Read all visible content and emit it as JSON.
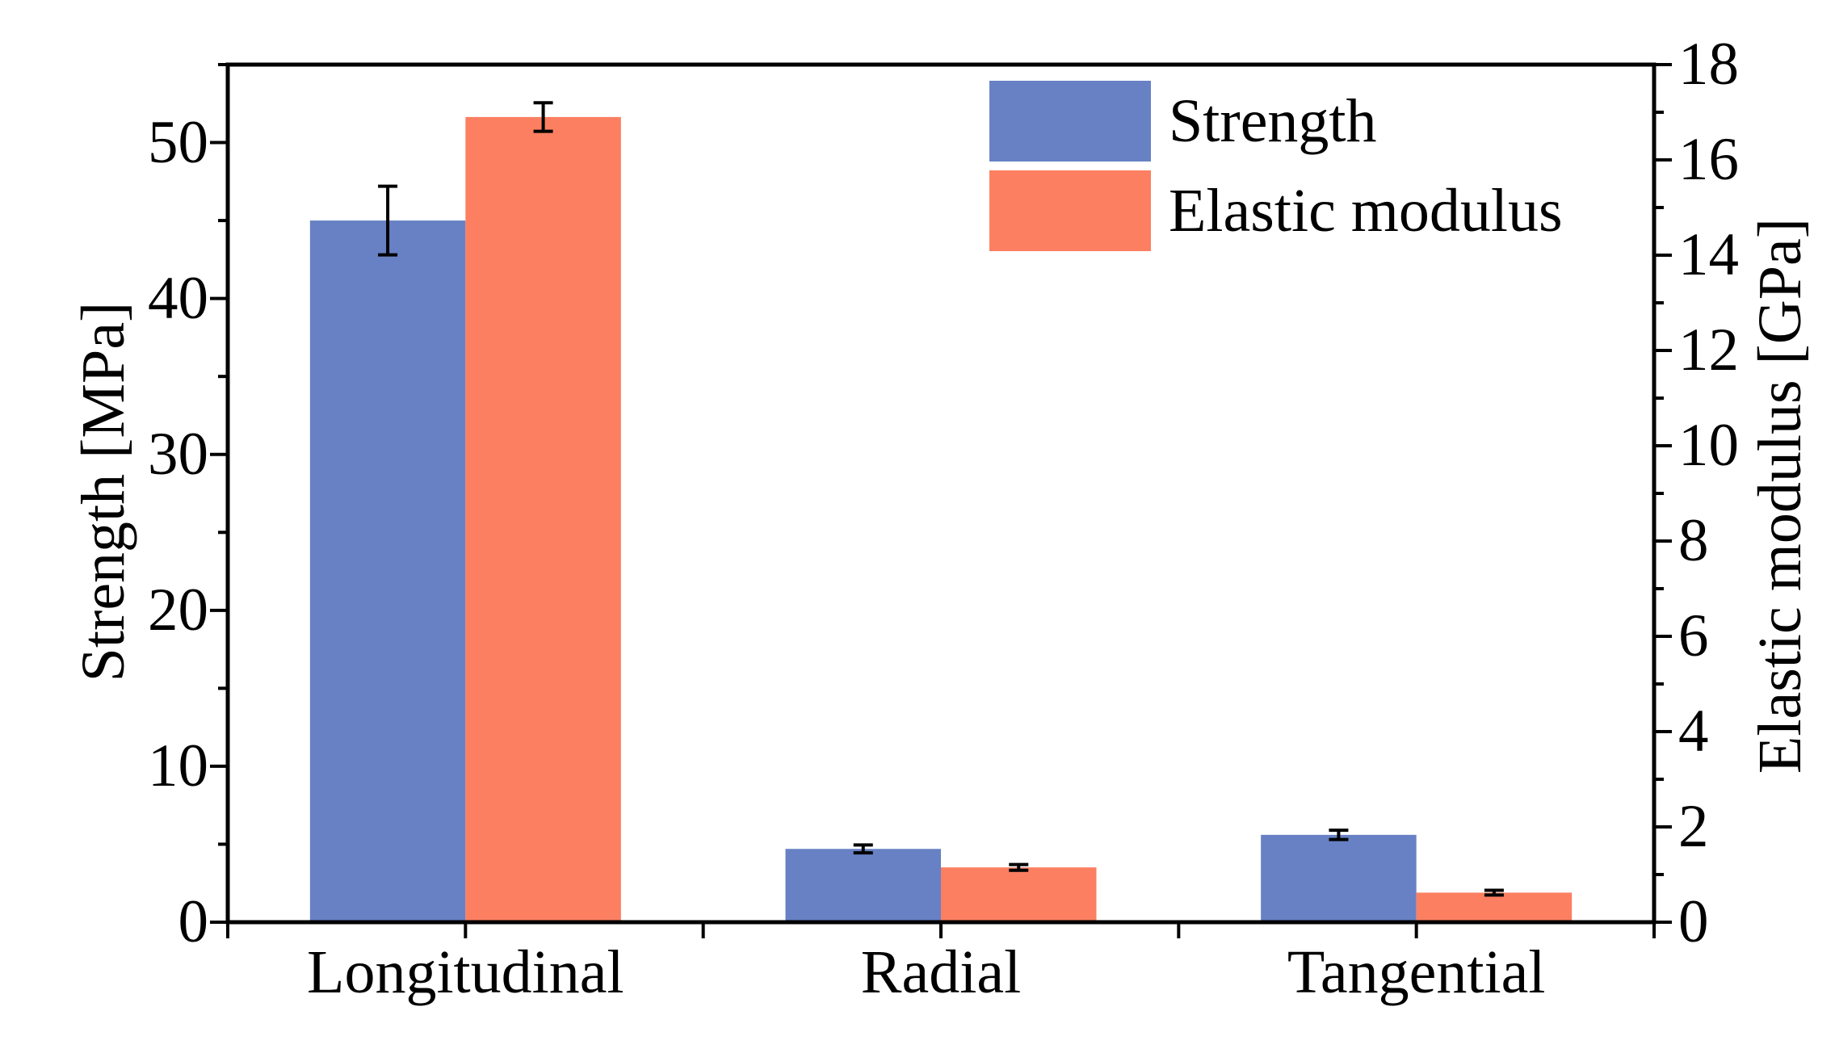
{
  "chart_data": {
    "type": "bar",
    "title": "",
    "categories": [
      "Longitudinal",
      "Radial",
      "Tangential"
    ],
    "series": [
      {
        "name": "Strength",
        "axis": "left",
        "unit": "MPa",
        "color": "#6781C4",
        "values": [
          45.0,
          4.7,
          5.6
        ],
        "errors": [
          2.2,
          0.25,
          0.3
        ]
      },
      {
        "name": "Elastic modulus",
        "axis": "right",
        "unit": "GPa",
        "color": "#FC7F62",
        "values": [
          16.9,
          1.15,
          0.62
        ],
        "errors": [
          0.3,
          0.06,
          0.05
        ]
      }
    ],
    "left_axis": {
      "label": "Strength [MPa]",
      "min": 0,
      "max": 55,
      "major_tick_step": 10,
      "minor_tick_step": 5,
      "tick_labels": [
        "0",
        "10",
        "20",
        "30",
        "40",
        "50"
      ]
    },
    "right_axis": {
      "label": "Elastic modulus [GPa]",
      "min": 0,
      "max": 18,
      "major_tick_step": 2,
      "minor_tick_step": 1,
      "tick_labels": [
        "0",
        "2",
        "4",
        "6",
        "8",
        "10",
        "12",
        "14",
        "16",
        "18"
      ]
    },
    "legend": {
      "position": "top-right",
      "entries": [
        "Strength",
        "Elastic modulus"
      ]
    },
    "grid": false,
    "error_bars": true,
    "axis_color": "#000000",
    "background_color": "#ffffff"
  }
}
